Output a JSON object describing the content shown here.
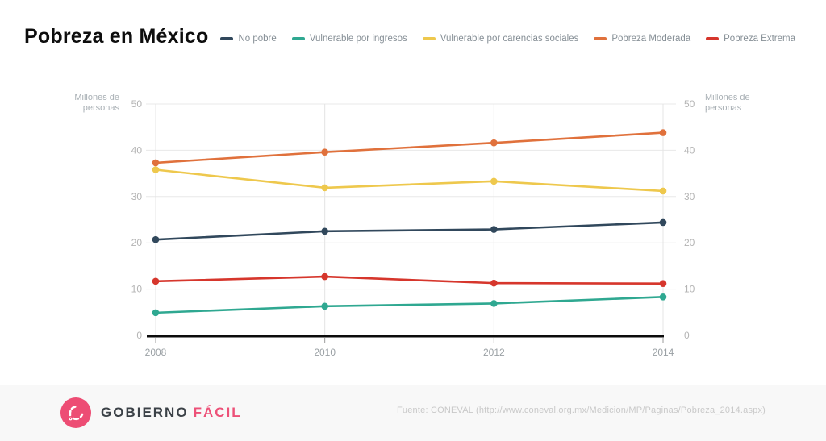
{
  "header": {
    "title": "Pobreza en México"
  },
  "chart_data": {
    "type": "line",
    "x": [
      2008,
      2010,
      2012,
      2014
    ],
    "xtick_labels": [
      "2008",
      "2010",
      "2012",
      "2014"
    ],
    "series": [
      {
        "name": "No pobre",
        "color": "#31485c",
        "values": [
          20.7,
          22.5,
          22.9,
          24.4
        ]
      },
      {
        "name": "Vulnerable por ingresos",
        "color": "#2fa891",
        "values": [
          4.9,
          6.3,
          6.9,
          8.3
        ]
      },
      {
        "name": "Vulnerable por carencias sociales",
        "color": "#eec84d",
        "values": [
          35.8,
          31.9,
          33.3,
          31.2
        ]
      },
      {
        "name": "Pobreza Moderada",
        "color": "#e0713c",
        "values": [
          37.3,
          39.6,
          41.6,
          43.8
        ]
      },
      {
        "name": "Pobreza Extrema",
        "color": "#d6362c",
        "values": [
          11.7,
          12.7,
          11.3,
          11.2
        ]
      }
    ],
    "title": "Pobreza en México",
    "y_axis_label": "Millones de personas",
    "ylim": [
      0,
      50
    ],
    "yticks": [
      0,
      10,
      20,
      30,
      40,
      50
    ],
    "grid": true,
    "legend_position": "top",
    "axis_sides": "both"
  },
  "footer": {
    "brand_primary": "GOBIERNO",
    "brand_secondary": "FÁCIL",
    "source": "Fuente: CONEVAL (http://www.coneval.org.mx/Medicion/MP/Paginas/Pobreza_2014.aspx)"
  },
  "colors": {
    "background": "#ffffff",
    "footer_background": "#f8f8f8",
    "grid_line": "#e8e8e8",
    "baseline": "#0b0b0b",
    "tick_label": "#b4b4b4",
    "x_label": "#9aa0a4",
    "brand_pink": "#ed5178"
  }
}
